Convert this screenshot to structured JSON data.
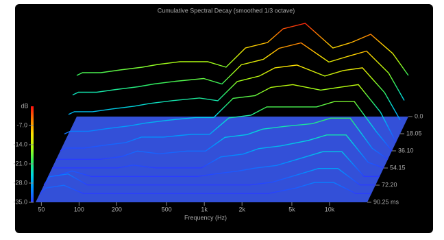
{
  "chart_data": {
    "type": "waterfall",
    "title": "Cumulative Spectral Decay (smoothed 1/3 octave)",
    "xlabel": "Frequency (Hz)",
    "ylabel": "dB",
    "x": [
      45,
      50,
      70,
      100,
      150,
      200,
      300,
      500,
      700,
      1000,
      1500,
      2000,
      3000,
      5000,
      7000,
      10000,
      15000,
      20000
    ],
    "xlim": [
      45,
      20000
    ],
    "xticks": [
      50,
      100,
      200,
      500,
      {
        "value": 1000,
        "label": "1k"
      },
      {
        "value": 2000,
        "label": "2k"
      },
      {
        "value": 5000,
        "label": "5k"
      },
      {
        "value": 10000,
        "label": "10k"
      }
    ],
    "log_x": true,
    "ylim": [
      -35,
      0
    ],
    "yticks": [
      {
        "value": -35,
        "label": "-35.0"
      },
      {
        "value": -28,
        "label": "-28.0"
      },
      {
        "value": -21,
        "label": "-21.0"
      },
      {
        "value": -14,
        "label": "-14.0"
      },
      {
        "value": -7,
        "label": "-7.0"
      }
    ],
    "zlim": [
      0,
      90.25
    ],
    "zticks": [
      {
        "value": 0,
        "label": "0.0"
      },
      18.05,
      {
        "value": 36.1,
        "label": "36.10"
      },
      54.15,
      {
        "value": 72.2,
        "label": "72.20"
      },
      {
        "value": 90.25,
        "label": "90.25 ms"
      }
    ],
    "colormap": [
      "#2a3cff",
      "#0090ff",
      "#00d8e0",
      "#30f060",
      "#b0ff10",
      "#ffe000",
      "#ff8000",
      "#ff1010"
    ],
    "floor_color": "#3350d8",
    "slices": [
      {
        "t": 0,
        "values": [
          -20,
          -19,
          -19,
          -18,
          -17,
          -16,
          -15,
          -15,
          -17,
          -10,
          -8,
          -3,
          -1,
          -10,
          -8,
          -5,
          -12,
          -20
        ]
      },
      {
        "t": 9,
        "values": [
          -24,
          -23,
          -23,
          -22,
          -21,
          -20,
          -19,
          -18,
          -20,
          -13,
          -11,
          -7,
          -5,
          -12,
          -10,
          -8,
          -16,
          -26
        ]
      },
      {
        "t": 18,
        "values": [
          -28,
          -27,
          -27,
          -26,
          -25,
          -24,
          -23,
          -22,
          -23,
          -16,
          -14,
          -11,
          -10,
          -14,
          -12,
          -11,
          -20,
          -30
        ]
      },
      {
        "t": 27,
        "values": [
          -32,
          -31,
          -31,
          -30,
          -29,
          -28,
          -27,
          -26,
          -26,
          -19,
          -18,
          -15,
          -14,
          -16,
          -15,
          -14,
          -24,
          -35
        ]
      },
      {
        "t": 36,
        "values": [
          -35,
          -34,
          -34,
          -33,
          -32,
          -30,
          -30,
          -29,
          -29,
          -23,
          -22,
          -19,
          -19,
          -19,
          -17,
          -17,
          -28,
          -35
        ]
      },
      {
        "t": 45,
        "values": [
          -35,
          -35,
          -35,
          -35,
          -34,
          -32,
          -33,
          -32,
          -32,
          -27,
          -26,
          -24,
          -23,
          -22,
          -20,
          -20,
          -31,
          -35
        ]
      },
      {
        "t": 54,
        "values": [
          -35,
          -35,
          -35,
          -35,
          -35,
          -34,
          -35,
          -35,
          -35,
          -31,
          -30,
          -28,
          -27,
          -25,
          -23,
          -23,
          -33,
          -35
        ]
      },
      {
        "t": 63,
        "values": [
          -35,
          -35,
          -33,
          -35,
          -35,
          -35,
          -35,
          -35,
          -35,
          -34,
          -33,
          -32,
          -31,
          -28,
          -26,
          -26,
          -35,
          -35
        ]
      },
      {
        "t": 72,
        "values": [
          -35,
          -32,
          -31,
          -35,
          -35,
          -35,
          -35,
          -35,
          -35,
          -35,
          -35,
          -35,
          -34,
          -31,
          -29,
          -29,
          -35,
          -35
        ]
      },
      {
        "t": 81,
        "values": [
          -35,
          -33,
          -32,
          -35,
          -35,
          -35,
          -35,
          -35,
          -35,
          -35,
          -35,
          -35,
          -35,
          -33,
          -31,
          -31,
          -35,
          -35
        ]
      }
    ]
  }
}
